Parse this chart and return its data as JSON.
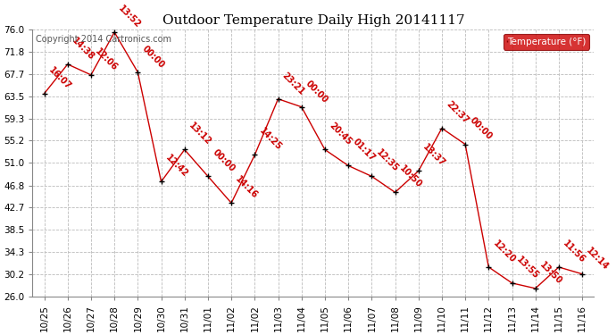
{
  "title": "Outdoor Temperature Daily High 20141117",
  "copyright": "Copyright 2014 Cartronics.com",
  "legend_label": "Temperature (°F)",
  "x_tick_labels": [
    "10/25",
    "10/26",
    "10/27",
    "10/28",
    "10/29",
    "10/30",
    "10/31",
    "11/01",
    "11/02",
    "11/02",
    "11/03",
    "11/04",
    "11/05",
    "11/06",
    "11/07",
    "11/08",
    "11/09",
    "11/10",
    "11/11",
    "11/12",
    "11/13",
    "11/14",
    "11/15",
    "11/16"
  ],
  "y_values": [
    64.0,
    69.5,
    67.5,
    75.5,
    68.0,
    47.5,
    53.5,
    48.5,
    43.5,
    52.5,
    63.0,
    61.5,
    53.5,
    50.5,
    48.5,
    45.5,
    49.5,
    57.5,
    54.5,
    31.5,
    28.5,
    27.5,
    31.5,
    30.2
  ],
  "time_labels": [
    "16:07",
    "14:38",
    "12:06",
    "13:52",
    "00:00",
    "12:42",
    "13:12",
    "00:00",
    "14:16",
    "14:25",
    "23:21",
    "00:00",
    "20:45",
    "01:17",
    "12:35",
    "10:50",
    "13:37",
    "22:37",
    "00:00",
    "12:20",
    "13:55",
    "13:50",
    "11:56",
    "12:14"
  ],
  "yticks": [
    26.0,
    30.2,
    34.3,
    38.5,
    42.7,
    46.8,
    51.0,
    55.2,
    59.3,
    63.5,
    67.7,
    71.8,
    76.0
  ],
  "ylim": [
    26.0,
    76.0
  ],
  "line_color": "#cc0000",
  "marker_color": "#000000",
  "annotation_color": "#cc0000",
  "grid_color": "#bbbbbb",
  "background_color": "#ffffff",
  "legend_bg": "#cc0000",
  "legend_text_color": "#ffffff",
  "title_fontsize": 11,
  "tick_fontsize": 7.5,
  "annotation_fontsize": 7,
  "copyright_fontsize": 7
}
